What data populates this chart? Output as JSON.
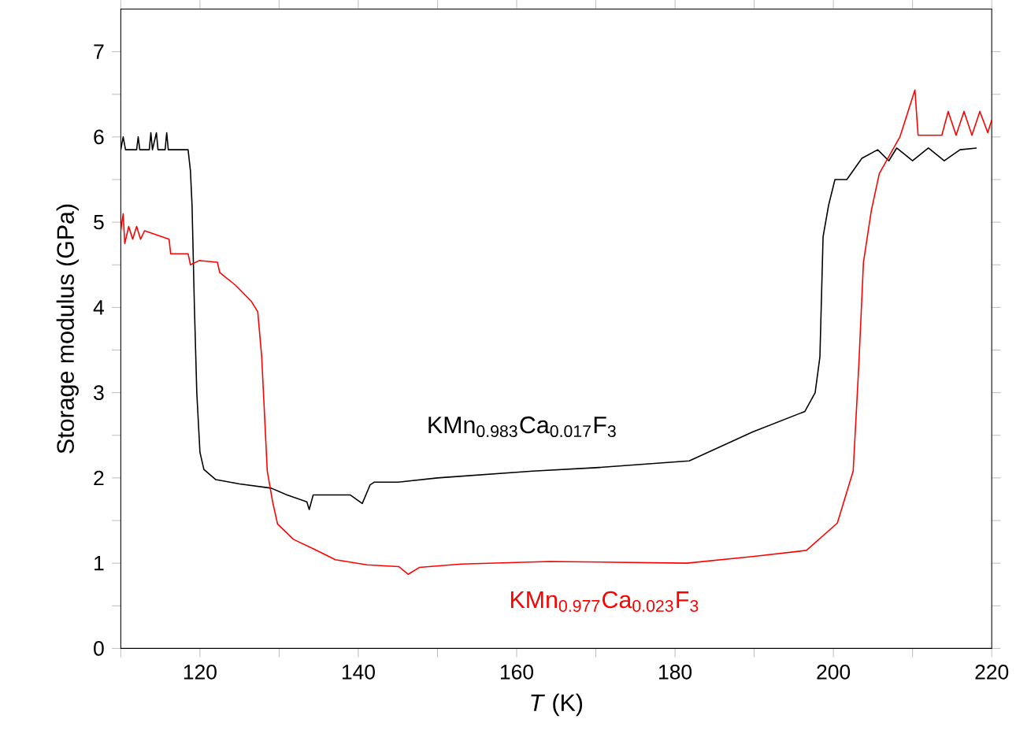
{
  "chart_data": {
    "type": "line",
    "xlabel": "*T* (K)",
    "ylabel": "Storage modulus (GPa)",
    "xlim": [
      110,
      220
    ],
    "ylim": [
      0,
      7.5
    ],
    "xticks": [
      {
        "value": 110,
        "label": null
      },
      120,
      {
        "value": 130,
        "label": null
      },
      140,
      {
        "value": 150,
        "label": null
      },
      160,
      {
        "value": 170,
        "label": null
      },
      180,
      {
        "value": 190,
        "label": null
      },
      200,
      {
        "value": 210,
        "label": null
      },
      220
    ],
    "yticks": [
      0,
      {
        "value": 0.5,
        "label": null
      },
      1,
      {
        "value": 1.5,
        "label": null
      },
      2,
      {
        "value": 2.5,
        "label": null
      },
      3,
      {
        "value": 3.5,
        "label": null
      },
      4,
      {
        "value": 4.5,
        "label": null
      },
      5,
      {
        "value": 5.5,
        "label": null
      },
      6,
      {
        "value": 6.5,
        "label": null
      },
      7
    ],
    "grid": false,
    "marker": "none",
    "line_style": "solid",
    "series": [
      {
        "name": "KMn$_{0.983}$Ca$_{0.017}$F$_{3}$",
        "color": "#000000",
        "x": [
          110,
          110.3,
          110.6,
          112,
          112.2,
          112.4,
          113.6,
          113.8,
          114,
          114.5,
          114.7,
          115.6,
          115.8,
          116,
          118.5,
          118.8,
          119,
          119.3,
          119.6,
          120,
          120.5,
          122,
          125,
          129,
          131,
          133.5,
          133.8,
          134.3,
          136,
          139,
          140.5,
          141.5,
          142,
          145,
          150,
          162,
          170,
          181.8,
          189.8,
          196.4,
          197.7,
          198.3,
          198.7,
          199.4,
          200.2,
          201.7,
          203.6,
          205.6,
          207,
          208,
          210,
          212,
          214,
          216,
          218.1
        ],
        "values": [
          5.85,
          6.0,
          5.85,
          5.85,
          6.0,
          5.85,
          5.85,
          6.05,
          5.85,
          6.05,
          5.85,
          5.85,
          6.05,
          5.85,
          5.85,
          5.6,
          5.2,
          4.0,
          3.0,
          2.3,
          2.1,
          1.98,
          1.93,
          1.88,
          1.8,
          1.72,
          1.63,
          1.8,
          1.8,
          1.8,
          1.7,
          1.92,
          1.95,
          1.95,
          2.0,
          2.08,
          2.12,
          2.2,
          2.54,
          2.78,
          3.0,
          3.42,
          4.83,
          5.2,
          5.5,
          5.5,
          5.75,
          5.85,
          5.72,
          5.87,
          5.72,
          5.87,
          5.72,
          5.85,
          5.87
        ]
      },
      {
        "name": "KMn$_{0.977}$Ca$_{0.023}$F$_{3}$",
        "color": "#ff0000",
        "x": [
          110,
          110.3,
          110.5,
          111,
          111.5,
          112,
          112.5,
          113,
          116.1,
          116.3,
          118.5,
          118.8,
          119.9,
          122.2,
          122.5,
          124.5,
          126.5,
          127.3,
          127.8,
          128.5,
          129.2,
          129.8,
          131.8,
          134.5,
          137.1,
          141.1,
          145.1,
          146.3,
          147.7,
          153,
          164.2,
          181.5,
          190,
          196.6,
          200.5,
          202.5,
          203.2,
          203.8,
          204.8,
          205.8,
          208.4,
          210.3,
          210.7,
          213.7,
          214.5,
          215.5,
          216.5,
          217.5,
          218.5,
          219.5,
          220
        ],
        "values": [
          4.9,
          5.1,
          4.75,
          4.95,
          4.8,
          4.95,
          4.8,
          4.9,
          4.8,
          4.63,
          4.63,
          4.5,
          4.55,
          4.53,
          4.41,
          4.26,
          4.07,
          3.95,
          3.42,
          2.08,
          1.71,
          1.46,
          1.28,
          1.16,
          1.04,
          0.98,
          0.96,
          0.87,
          0.95,
          0.99,
          1.02,
          1.0,
          1.08,
          1.15,
          1.47,
          2.08,
          3.3,
          4.53,
          5.14,
          5.57,
          6.0,
          6.55,
          6.02,
          6.02,
          6.3,
          6.02,
          6.3,
          6.02,
          6.3,
          6.05,
          6.2
        ]
      }
    ]
  }
}
